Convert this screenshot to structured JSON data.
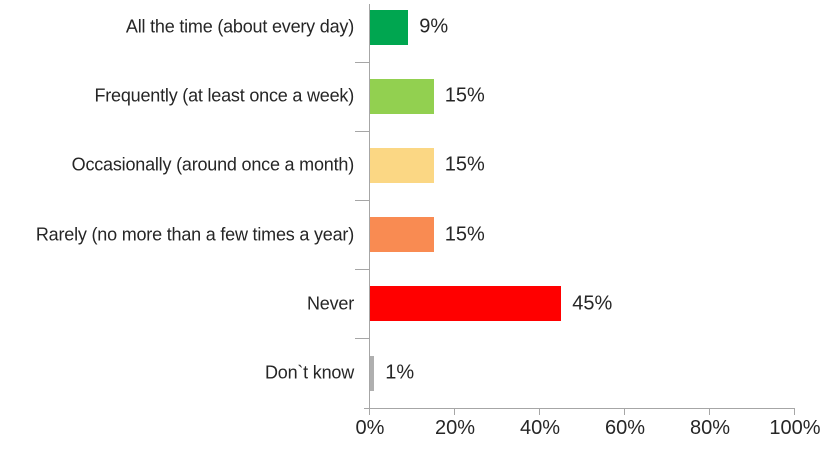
{
  "chart_data": {
    "type": "bar",
    "orientation": "horizontal",
    "title": "",
    "xlabel": "",
    "ylabel": "",
    "categories": [
      "All the time (about every day)",
      "Frequently (at least once a week)",
      "Occasionally (around once a month)",
      "Rarely (no more than a few times a year)",
      "Never",
      "Don`t know"
    ],
    "values": [
      9,
      15,
      15,
      15,
      45,
      1
    ],
    "value_labels": [
      "9%",
      "15%",
      "15%",
      "15%",
      "45%",
      "1%"
    ],
    "bar_colors": [
      "#00A650",
      "#92D050",
      "#FBD784",
      "#F98B52",
      "#FF0000",
      "#AFAFAF"
    ],
    "xlim": [
      0,
      100
    ],
    "x_ticks": [
      {
        "value": 0,
        "label": "0%"
      },
      {
        "value": 20,
        "label": "20%"
      },
      {
        "value": 40,
        "label": "40%"
      },
      {
        "value": 60,
        "label": "60%"
      },
      {
        "value": 80,
        "label": "80%"
      },
      {
        "value": 100,
        "label": "100%"
      }
    ],
    "grid": "off",
    "legend": "none",
    "colors": {
      "axis": "#A6A6A6",
      "text": "#262626",
      "background": "#FFFFFF"
    }
  }
}
